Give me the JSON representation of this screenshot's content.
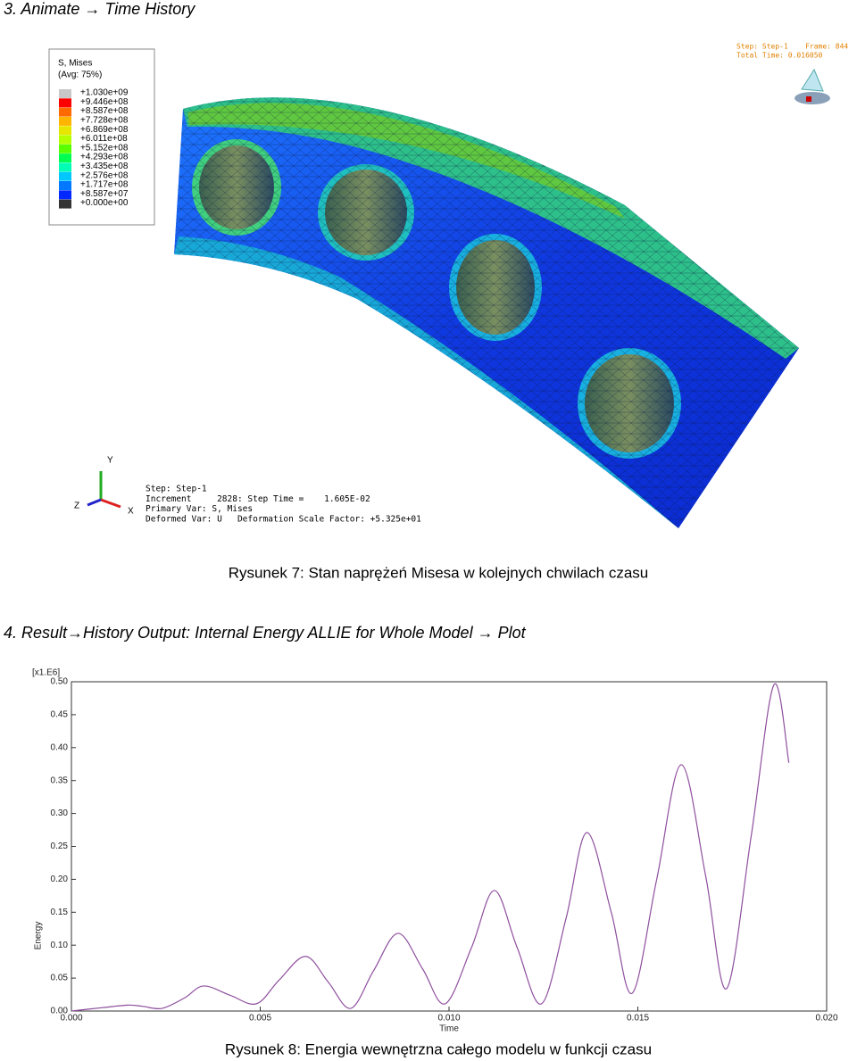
{
  "section3": {
    "heading": "3. Animate → Time History"
  },
  "figure7": {
    "legend": {
      "title": "S, Mises",
      "subtitle": "(Avg: 75%)",
      "entries": [
        {
          "label": "+1.030e+09",
          "color": "#c8c8c8"
        },
        {
          "label": "+9.446e+08",
          "color": "#ff0000"
        },
        {
          "label": "+8.587e+08",
          "color": "#ff6a00"
        },
        {
          "label": "+7.728e+08",
          "color": "#ffb400"
        },
        {
          "label": "+6.869e+08",
          "color": "#e6e600"
        },
        {
          "label": "+6.011e+08",
          "color": "#b4ff00"
        },
        {
          "label": "+5.152e+08",
          "color": "#5aff00"
        },
        {
          "label": "+4.293e+08",
          "color": "#00ff50"
        },
        {
          "label": "+3.435e+08",
          "color": "#00ffb4"
        },
        {
          "label": "+2.576e+08",
          "color": "#00c8ff"
        },
        {
          "label": "+1.717e+08",
          "color": "#0078ff"
        },
        {
          "label": "+8.587e+07",
          "color": "#0028ff"
        },
        {
          "label": "+0.000e+00",
          "color": "#333333"
        }
      ]
    },
    "frame_info": [
      "Step: Step-1    Frame: 844",
      "Total Time: 0.016050"
    ],
    "triad_labels": [
      "Y",
      "Z",
      "X"
    ],
    "step_info": [
      "Step: Step-1",
      "Increment     2828: Step Time =    1.605E-02",
      "Primary Var: S, Mises",
      "Deformed Var: U   Deformation Scale Factor: +5.325e+01"
    ],
    "caption": "Rysunek 7: Stan naprężeń Misesa w kolejnych chwilach czasu"
  },
  "section4": {
    "heading": "4. Result→History Output: Internal Energy ALLIE for Whole Model → Plot"
  },
  "chart_data": {
    "type": "line",
    "xlabel": "Time",
    "ylabel": "Energy",
    "y_multiplier": "[x1.E6]",
    "x": [
      0,
      0.0008,
      0.0015,
      0.0019,
      0.0024,
      0.003,
      0.0035,
      0.0042,
      0.0049,
      0.0055,
      0.0062,
      0.0068,
      0.0074,
      0.008,
      0.00865,
      0.0093,
      0.0099,
      0.0106,
      0.0112,
      0.0118,
      0.01245,
      0.0131,
      0.01365,
      0.0143,
      0.01485,
      0.0155,
      0.01615,
      0.0168,
      0.01735,
      0.018,
      0.0186,
      0.019
    ],
    "values": [
      0,
      0.005,
      0.009,
      0.007,
      0.004,
      0.02,
      0.038,
      0.024,
      0.011,
      0.047,
      0.083,
      0.044,
      0.004,
      0.061,
      0.118,
      0.064,
      0.011,
      0.097,
      0.183,
      0.097,
      0.011,
      0.141,
      0.271,
      0.149,
      0.027,
      0.2,
      0.374,
      0.204,
      0.034,
      0.265,
      0.495,
      0.377
    ],
    "color": "#8e4f9e",
    "xlim": [
      0,
      0.02
    ],
    "ylim": [
      0,
      0.5
    ],
    "xticks": [
      {
        "value": 0,
        "label": "0.000"
      },
      {
        "value": 0.005,
        "label": "0.005"
      },
      {
        "value": 0.01,
        "label": "0.010"
      },
      {
        "value": 0.015,
        "label": "0.015"
      },
      {
        "value": 0.02,
        "label": "0.020"
      }
    ],
    "yticks": [
      {
        "value": 0,
        "label": "0.00"
      },
      {
        "value": 0.05,
        "label": "0.05"
      },
      {
        "value": 0.1,
        "label": "0.10"
      },
      {
        "value": 0.15,
        "label": "0.15"
      },
      {
        "value": 0.2,
        "label": "0.20"
      },
      {
        "value": 0.25,
        "label": "0.25"
      },
      {
        "value": 0.3,
        "label": "0.30"
      },
      {
        "value": 0.35,
        "label": "0.35"
      },
      {
        "value": 0.4,
        "label": "0.40"
      },
      {
        "value": 0.45,
        "label": "0.45"
      },
      {
        "value": 0.5,
        "label": "0.50"
      }
    ],
    "grid": false
  },
  "figure8": {
    "caption": "Rysunek 8: Energia wewnętrzna całego modelu w funkcji czasu"
  }
}
